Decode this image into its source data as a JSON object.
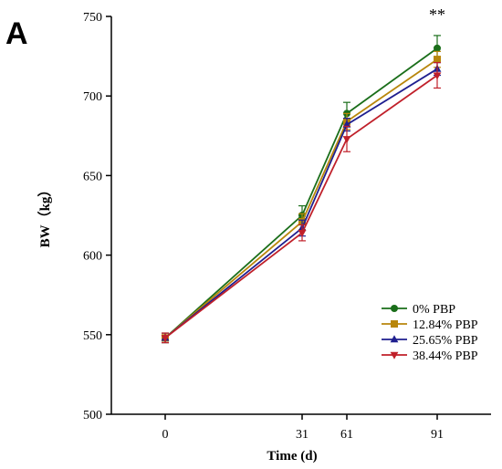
{
  "panel_label": "A",
  "chart_data": {
    "type": "line",
    "xlabel": "Time (d)",
    "ylabel": "BW（kg）",
    "categories": [
      "0",
      "31",
      "61",
      "91"
    ],
    "ylim": [
      500,
      750
    ],
    "yticks": [
      500,
      550,
      600,
      650,
      700,
      750
    ],
    "grid": false,
    "legend_position": "bottom-right",
    "series": [
      {
        "name": "0% PBP",
        "color": "#1a6e1a",
        "marker": "circle",
        "values": [
          548,
          625,
          689,
          730
        ],
        "errors": [
          3,
          6,
          7,
          8
        ]
      },
      {
        "name": "12.84% PBP",
        "color": "#b8860b",
        "marker": "square",
        "values": [
          548,
          621,
          684,
          723
        ],
        "errors": [
          3,
          5,
          5,
          5
        ]
      },
      {
        "name": "25.65% PBP",
        "color": "#1f1f8f",
        "marker": "triangle-up",
        "values": [
          548,
          617,
          682,
          717
        ],
        "errors": [
          3,
          5,
          4,
          4
        ]
      },
      {
        "name": "38.44% PBP",
        "color": "#c0202a",
        "marker": "triangle-down",
        "values": [
          548,
          614,
          673,
          713
        ],
        "errors": [
          3,
          5,
          8,
          8
        ]
      }
    ],
    "annotations": [
      {
        "text": "**",
        "category": "91"
      }
    ]
  }
}
